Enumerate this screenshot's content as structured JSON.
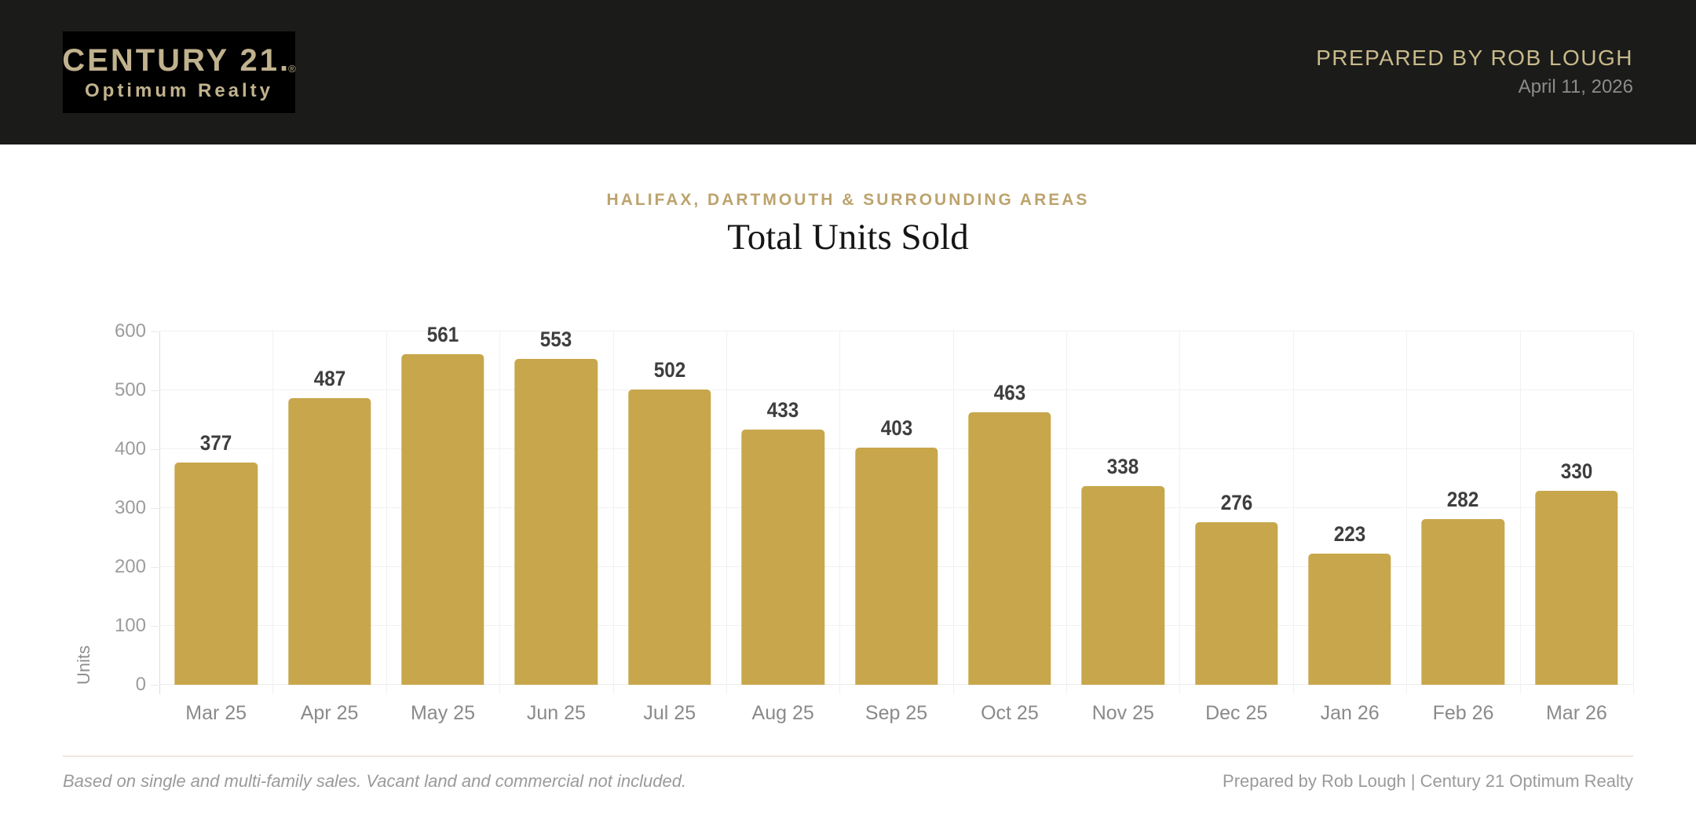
{
  "header": {
    "logo": {
      "line1": "CENTURY 21",
      "period": ".",
      "registered_mark": "®",
      "line2": "Optimum Realty"
    },
    "prepared_by": "PREPARED BY ROB LOUGH",
    "date": "April 11, 2026"
  },
  "titles": {
    "subtitle": "HALIFAX, DARTMOUTH & SURROUNDING AREAS",
    "title": "Total Units Sold"
  },
  "chart_data": {
    "type": "bar",
    "categories": [
      "Mar 25",
      "Apr 25",
      "May 25",
      "Jun 25",
      "Jul 25",
      "Aug 25",
      "Sep 25",
      "Oct 25",
      "Nov 25",
      "Dec 25",
      "Jan 26",
      "Feb 26",
      "Mar 26"
    ],
    "values": [
      377,
      487,
      561,
      553,
      502,
      433,
      403,
      463,
      338,
      276,
      223,
      282,
      330
    ],
    "title": "Total Units Sold",
    "xlabel": "",
    "ylabel": "Units",
    "ylim": [
      0,
      600
    ],
    "ytick_step": 100,
    "grid": true,
    "legend": "none",
    "value_labels": true,
    "bar_color": "#C8A64C",
    "value_label_color": "#3E3E3E"
  },
  "footer": {
    "note": "Based on single and multi-family sales. Vacant land and commercial not included.",
    "credit": "Prepared by Rob Lough | Century 21 Optimum Realty"
  },
  "colors": {
    "header_bg": "#1B1B1A",
    "logo_bg": "#000000",
    "logo_text": "#C1B28E",
    "prepared_gold": "#C9BA8A",
    "subtitle_gold": "#BCA36E",
    "bar_gold": "#C8A64C",
    "grid": "#F1F1F1",
    "axis_text": "#9C9C9C"
  }
}
